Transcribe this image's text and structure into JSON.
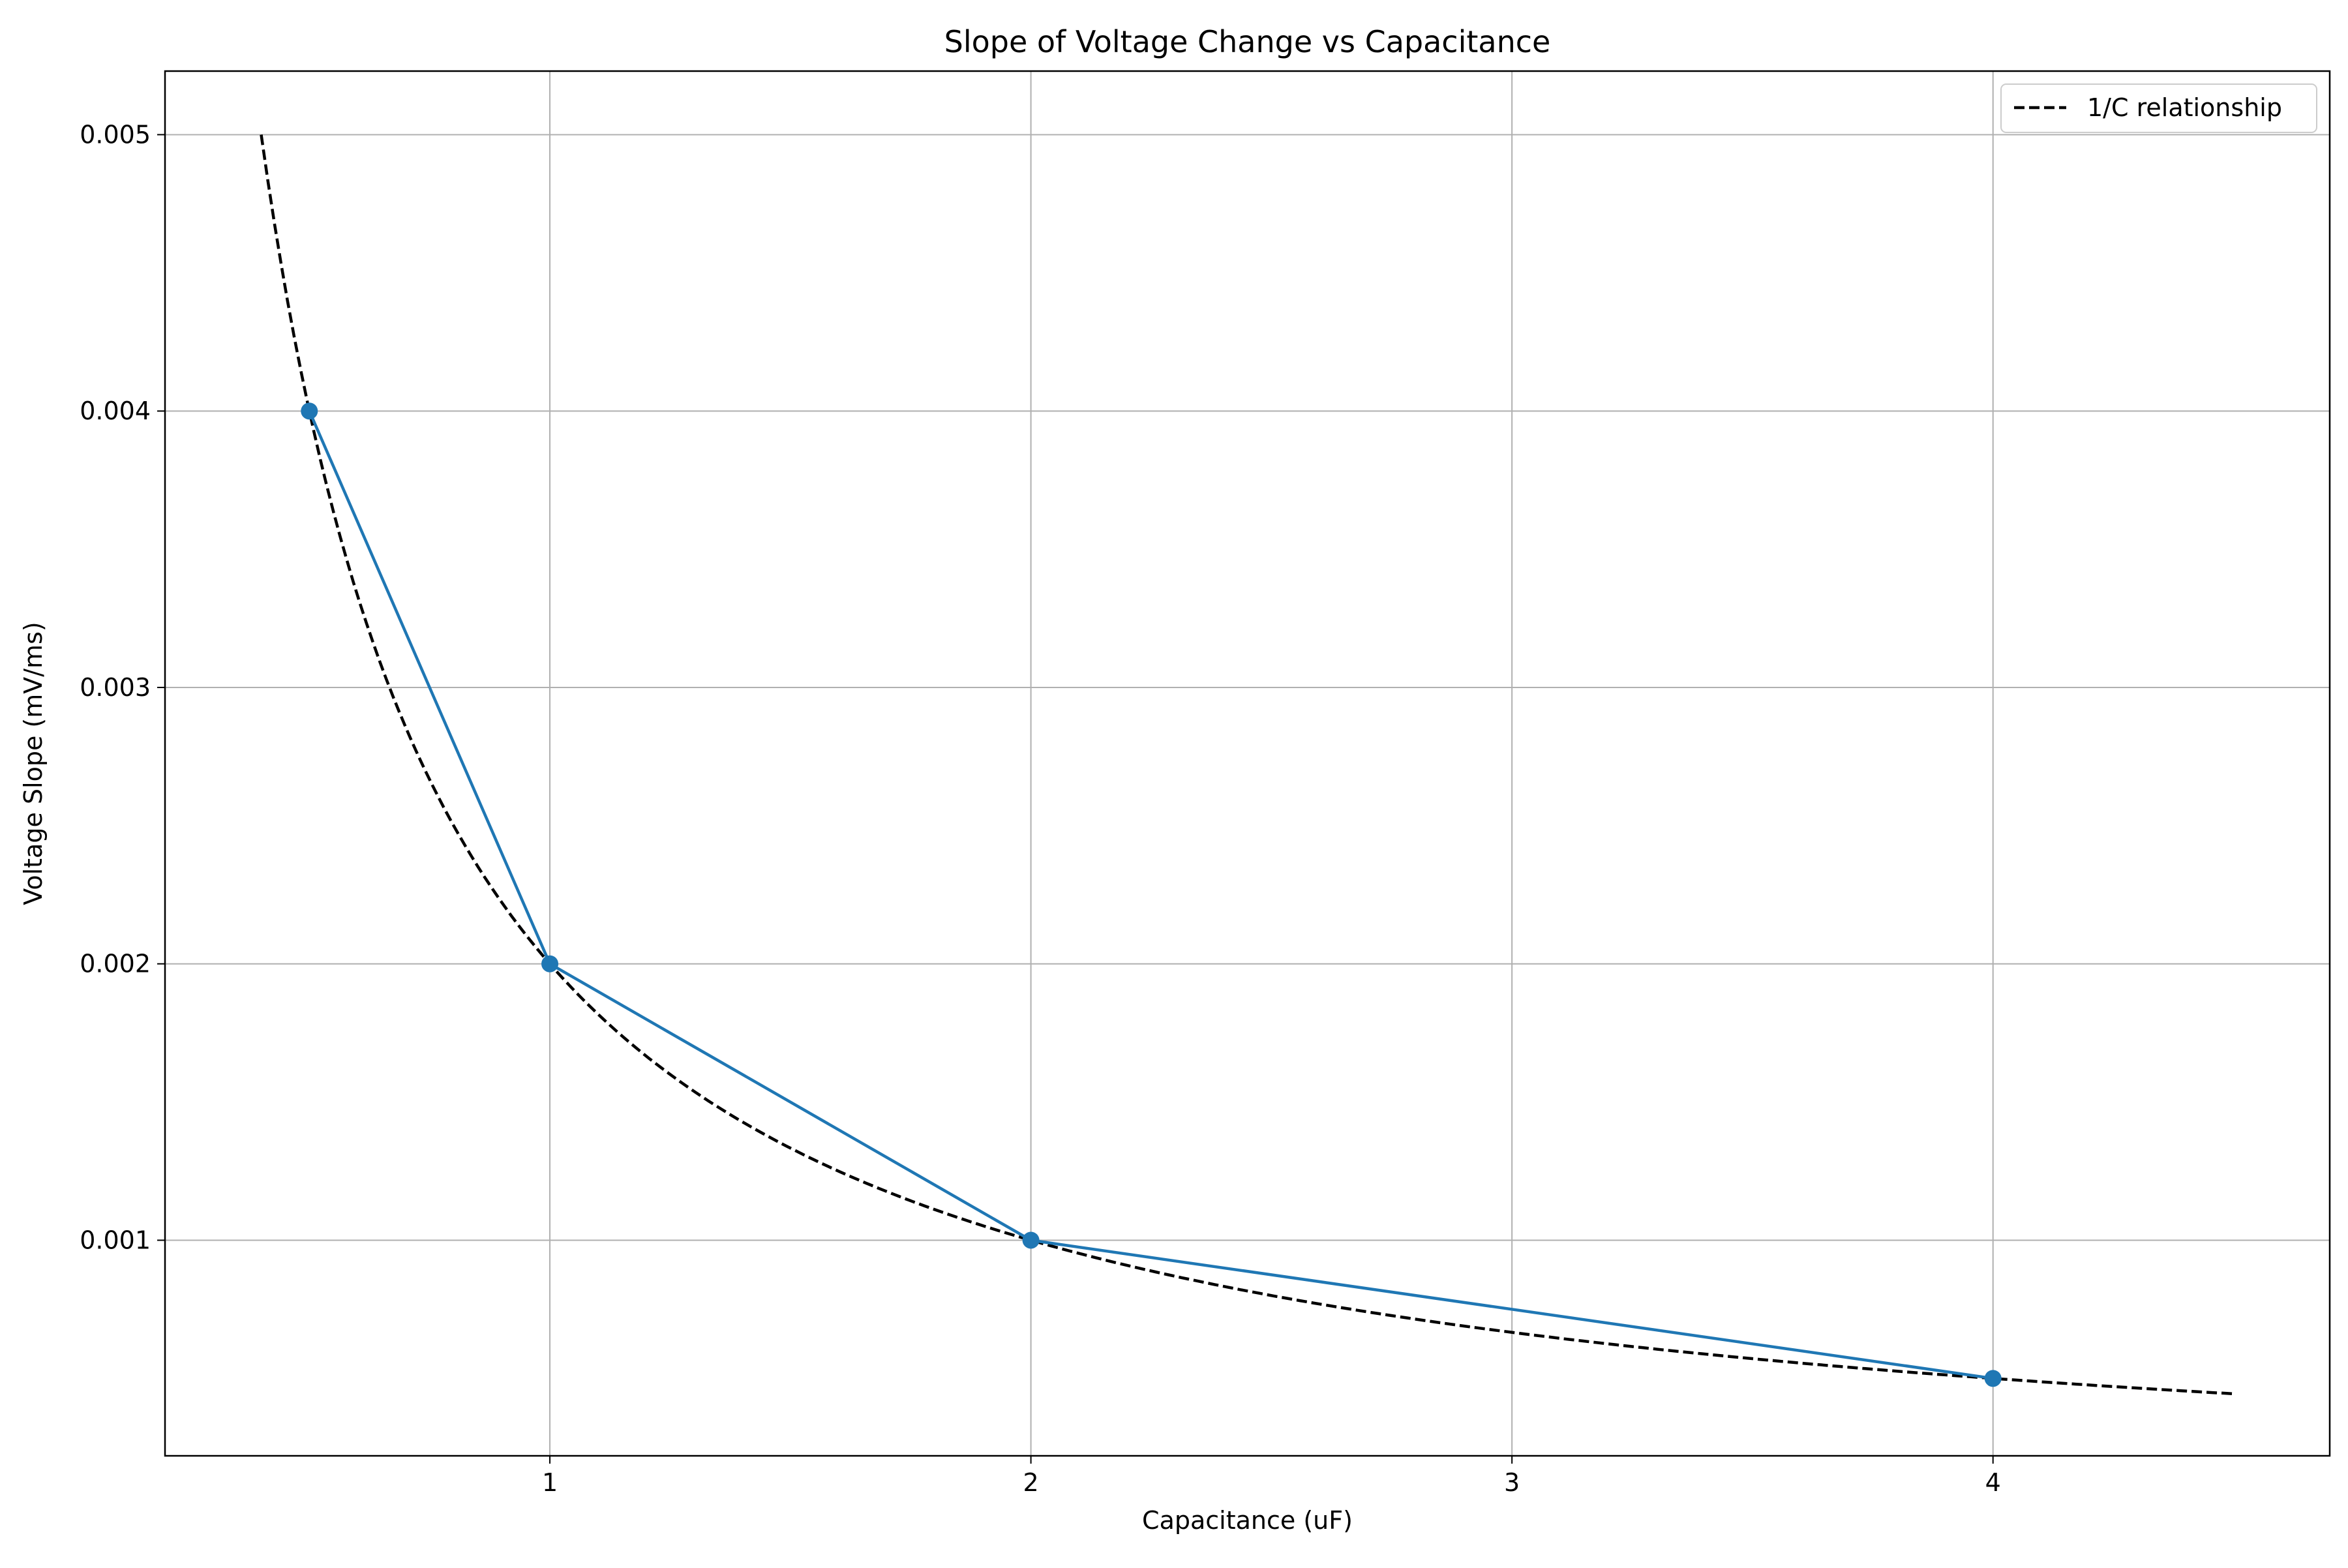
{
  "chart_data": {
    "type": "line",
    "title": "Slope of Voltage Change vs Capacitance",
    "xlabel": "Capacitance (uF)",
    "ylabel": "Voltage Slope (mV/ms)",
    "xlim": [
      0.2,
      4.7
    ],
    "ylim": [
      0.00022,
      0.00523
    ],
    "xticks": [
      {
        "value": 1,
        "label": "1"
      },
      {
        "value": 2,
        "label": "2"
      },
      {
        "value": 3,
        "label": "3"
      },
      {
        "value": 4,
        "label": "4"
      }
    ],
    "yticks": [
      {
        "value": 0.001,
        "label": "0.001"
      },
      {
        "value": 0.002,
        "label": "0.002"
      },
      {
        "value": 0.003,
        "label": "0.003"
      },
      {
        "value": 0.004,
        "label": "0.004"
      },
      {
        "value": 0.005,
        "label": "0.005"
      }
    ],
    "grid": true,
    "legend": {
      "position": "top-right",
      "entries": [
        "1/C relationship"
      ]
    },
    "series": [
      {
        "style": "solid-with-markers",
        "color": "#1f77b4",
        "x": [
          0.5,
          1,
          2,
          4
        ],
        "y": [
          0.004,
          0.002,
          0.001,
          0.0005
        ]
      },
      {
        "name": "1/C relationship",
        "style": "dashed",
        "color": "#000000",
        "function": "0.002 / C",
        "x_range": [
          0.4,
          4.5
        ]
      }
    ]
  }
}
